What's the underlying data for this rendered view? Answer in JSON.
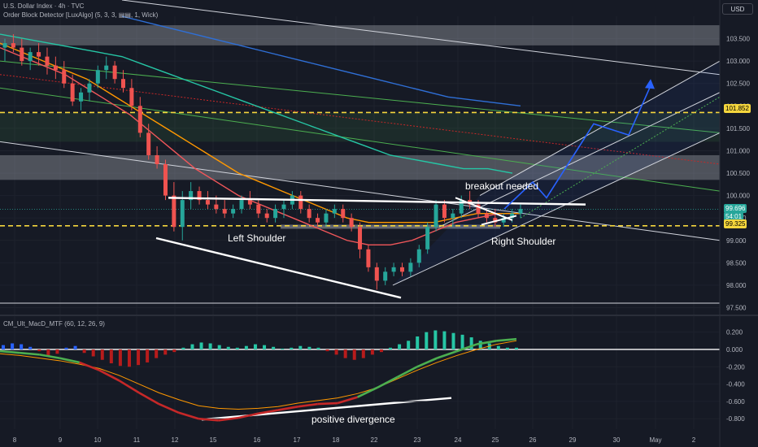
{
  "header": {
    "symbol_line": "U.S. Dollar Index · 4h · TVC",
    "indicator_line": "Order Block Detector [LuxAlgo] (5, 3, 3, ▤▤, 1, Wick)"
  },
  "currency_button": "USD",
  "macd_legend": "CM_Ult_MacD_MTF (60, 12, 26, 9)",
  "colors": {
    "background": "#161a25",
    "bull": "#26a69a",
    "bear": "#ef5350",
    "dashed_level": "#f5d63d",
    "macd_line_up": "#4caf50",
    "macd_line_down": "#c62828",
    "signal_line": "#ff9800"
  },
  "price_tags": {
    "level_high": "101.852",
    "current_price": "99.696",
    "countdown": "54:01",
    "level_low": "99.325"
  },
  "annotations": {
    "left_shoulder": "Left Shoulder",
    "right_shoulder": "Right Shoulder",
    "breakout": "breakout needed",
    "divergence": "positive divergence"
  },
  "chart_data": [
    {
      "type": "candlestick",
      "title": "U.S. Dollar Index · 4h · TVC",
      "x_ticks": [
        "8",
        "9",
        "10",
        "11",
        "12",
        "15",
        "16",
        "17",
        "18",
        "22",
        "23",
        "24",
        "25",
        "26",
        "29",
        "30",
        "May",
        "2"
      ],
      "y_ticks": [
        "103.500",
        "103.000",
        "102.500",
        "102.000",
        "101.500",
        "101.000",
        "100.500",
        "100.000",
        "99.500",
        "99.000",
        "98.500",
        "98.000",
        "97.500"
      ],
      "ylim": [
        97.4,
        104.0
      ],
      "horizontal_levels": [
        101.852,
        99.325
      ],
      "current_price": 99.696,
      "candles": [
        [
          103.3,
          103.5,
          103.0,
          103.4
        ],
        [
          103.4,
          103.6,
          103.2,
          103.3
        ],
        [
          103.3,
          103.5,
          102.9,
          103.0
        ],
        [
          103.0,
          103.3,
          102.8,
          103.2
        ],
        [
          103.2,
          103.4,
          102.9,
          103.1
        ],
        [
          103.1,
          103.3,
          102.7,
          102.9
        ],
        [
          102.9,
          103.1,
          102.6,
          102.8
        ],
        [
          102.8,
          103.0,
          102.4,
          102.5
        ],
        [
          102.5,
          102.7,
          102.0,
          102.1
        ],
        [
          102.1,
          102.4,
          101.9,
          102.3
        ],
        [
          102.3,
          102.6,
          102.1,
          102.5
        ],
        [
          102.5,
          102.9,
          102.4,
          102.8
        ],
        [
          102.8,
          103.1,
          102.6,
          102.9
        ],
        [
          102.9,
          103.0,
          102.5,
          102.6
        ],
        [
          102.6,
          102.8,
          102.3,
          102.4
        ],
        [
          102.4,
          102.6,
          101.9,
          102.0
        ],
        [
          102.0,
          102.2,
          101.3,
          101.4
        ],
        [
          101.4,
          101.6,
          100.8,
          100.9
        ],
        [
          100.9,
          101.1,
          100.6,
          100.7
        ],
        [
          100.7,
          100.8,
          99.9,
          100.0
        ],
        [
          100.0,
          100.3,
          99.2,
          99.3
        ],
        [
          99.3,
          100.1,
          99.0,
          99.9
        ],
        [
          99.9,
          100.3,
          99.7,
          100.1
        ],
        [
          100.1,
          100.2,
          99.8,
          99.9
        ],
        [
          99.9,
          100.1,
          99.7,
          99.8
        ],
        [
          99.8,
          100.0,
          99.6,
          99.7
        ],
        [
          99.7,
          99.9,
          99.5,
          99.6
        ],
        [
          99.6,
          99.8,
          99.5,
          99.7
        ],
        [
          99.7,
          100.0,
          99.6,
          99.9
        ],
        [
          99.9,
          100.1,
          99.7,
          99.8
        ],
        [
          99.8,
          99.9,
          99.5,
          99.6
        ],
        [
          99.6,
          99.7,
          99.4,
          99.5
        ],
        [
          99.5,
          99.8,
          99.4,
          99.7
        ],
        [
          99.7,
          99.9,
          99.5,
          99.8
        ],
        [
          99.8,
          100.1,
          99.7,
          100.0
        ],
        [
          100.0,
          100.1,
          99.6,
          99.7
        ],
        [
          99.7,
          99.8,
          99.4,
          99.5
        ],
        [
          99.5,
          99.6,
          99.3,
          99.4
        ],
        [
          99.4,
          99.7,
          99.3,
          99.6
        ],
        [
          99.6,
          99.8,
          99.5,
          99.7
        ],
        [
          99.7,
          99.8,
          99.4,
          99.5
        ],
        [
          99.5,
          99.6,
          99.2,
          99.3
        ],
        [
          99.3,
          99.4,
          98.6,
          98.8
        ],
        [
          98.8,
          98.9,
          98.3,
          98.4
        ],
        [
          98.4,
          98.5,
          97.9,
          98.1
        ],
        [
          98.1,
          98.4,
          98.0,
          98.3
        ],
        [
          98.3,
          98.5,
          98.2,
          98.4
        ],
        [
          98.4,
          98.5,
          98.2,
          98.3
        ],
        [
          98.3,
          98.6,
          98.2,
          98.5
        ],
        [
          98.5,
          98.9,
          98.4,
          98.8
        ],
        [
          98.8,
          99.4,
          98.7,
          99.3
        ],
        [
          99.3,
          99.9,
          99.2,
          99.8
        ],
        [
          99.8,
          99.9,
          99.4,
          99.5
        ],
        [
          99.5,
          99.7,
          99.3,
          99.6
        ],
        [
          99.6,
          100.0,
          99.5,
          99.9
        ],
        [
          99.9,
          100.1,
          99.7,
          99.8
        ],
        [
          99.8,
          99.9,
          99.5,
          99.6
        ],
        [
          99.6,
          99.7,
          99.4,
          99.5
        ],
        [
          99.5,
          99.7,
          99.3,
          99.4
        ],
        [
          99.4,
          99.6,
          99.3,
          99.5
        ],
        [
          99.5,
          99.7,
          99.4,
          99.6
        ],
        [
          99.6,
          99.8,
          99.5,
          99.7
        ]
      ],
      "moving_averages": [
        {
          "color": "#f2575a",
          "values": [
            103.3,
            103.1,
            102.9,
            102.7,
            102.4,
            102.1,
            101.8,
            101.4,
            101.0,
            100.6,
            100.3,
            100.0,
            99.8,
            99.6,
            99.4,
            99.2,
            99.0,
            98.9,
            98.9,
            99.0,
            99.2,
            99.4,
            99.5,
            99.6,
            99.6
          ]
        },
        {
          "color": "#ff9800",
          "values": [
            103.4,
            103.2,
            103.0,
            102.8,
            102.6,
            102.3,
            102.0,
            101.7,
            101.4,
            101.1,
            100.8,
            100.5,
            100.3,
            100.1,
            99.9,
            99.7,
            99.5,
            99.4,
            99.4,
            99.4,
            99.4,
            99.5,
            99.6,
            99.6,
            99.6
          ]
        },
        {
          "color": "#26c6a5",
          "values": [
            103.6,
            103.5,
            103.4,
            103.3,
            103.2,
            103.1,
            102.9,
            102.7,
            102.5,
            102.3,
            102.1,
            101.9,
            101.7,
            101.5,
            101.3,
            101.1,
            100.9,
            100.8,
            100.7,
            100.6,
            100.6,
            100.5
          ]
        },
        {
          "color": "#2f6fd6",
          "values": [
            104.0,
            103.8,
            103.6,
            103.4,
            103.2,
            103.0,
            102.8,
            102.6,
            102.4,
            102.2,
            102.1,
            102.0
          ]
        }
      ]
    },
    {
      "type": "histogram+line",
      "title": "CM_Ult_MacD_MTF (60, 12, 26, 9)",
      "y_ticks": [
        "0.200",
        "0.000",
        "-0.200",
        "-0.400",
        "-0.600",
        "-0.800"
      ],
      "ylim": [
        -0.92,
        0.3
      ],
      "histogram": [
        0.05,
        0.07,
        0.06,
        0.03,
        -0.02,
        -0.08,
        -0.05,
        0.02,
        0.04,
        -0.04,
        -0.08,
        -0.12,
        -0.16,
        -0.19,
        -0.2,
        -0.18,
        -0.15,
        -0.1,
        -0.06,
        -0.03,
        0.02,
        0.06,
        0.08,
        0.07,
        0.05,
        0.03,
        0.02,
        0.04,
        0.06,
        0.05,
        0.03,
        0.01,
        0.02,
        0.04,
        0.03,
        0.02,
        -0.02,
        -0.06,
        -0.1,
        -0.12,
        -0.1,
        -0.06,
        -0.03,
        0.02,
        0.06,
        0.1,
        0.15,
        0.2,
        0.22,
        0.21,
        0.19,
        0.17,
        0.14,
        0.1,
        0.07,
        0.04,
        0.02,
        0.02
      ],
      "macd": [
        -0.02,
        -0.04,
        -0.06,
        -0.1,
        -0.15,
        -0.24,
        -0.36,
        -0.5,
        -0.63,
        -0.73,
        -0.8,
        -0.82,
        -0.79,
        -0.74,
        -0.7,
        -0.66,
        -0.63,
        -0.62,
        -0.55,
        -0.44,
        -0.32,
        -0.2,
        -0.1,
        -0.02,
        0.06,
        0.1,
        0.12
      ],
      "signal": [
        -0.05,
        -0.07,
        -0.1,
        -0.13,
        -0.17,
        -0.22,
        -0.3,
        -0.4,
        -0.5,
        -0.58,
        -0.65,
        -0.68,
        -0.69,
        -0.68,
        -0.66,
        -0.62,
        -0.59,
        -0.56,
        -0.51,
        -0.44,
        -0.34,
        -0.24,
        -0.15,
        -0.07,
        0.0,
        0.06,
        0.1
      ]
    }
  ]
}
